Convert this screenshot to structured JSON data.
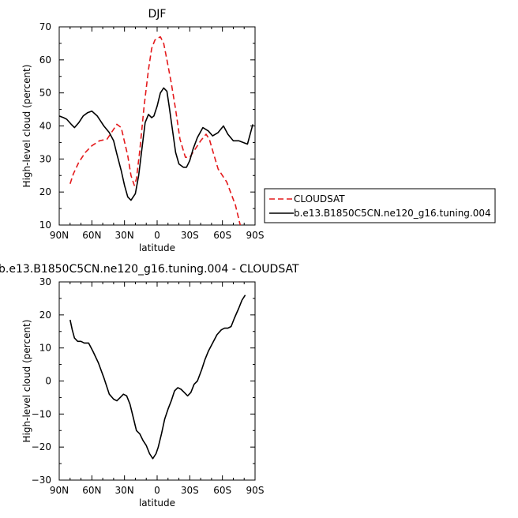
{
  "chart_data": [
    {
      "type": "line",
      "title": "DJF",
      "xlabel": "latitude",
      "ylabel": "High-level cloud (percent)",
      "xlim": [
        90,
        -90
      ],
      "ylim": [
        10,
        70
      ],
      "xticks": [
        90,
        60,
        30,
        0,
        -30,
        -60,
        -90
      ],
      "xtick_labels": [
        "90N",
        "60N",
        "30N",
        "0",
        "30S",
        "60S",
        "90S"
      ],
      "yticks": [
        10,
        20,
        30,
        40,
        50,
        60,
        70
      ],
      "ytick_labels": [
        "10",
        "20",
        "30",
        "40",
        "50",
        "60",
        "70"
      ],
      "legend": "right",
      "series": [
        {
          "name": "CLOUDSAT",
          "color": "#e41a1c",
          "dash": "dashed",
          "x": [
            80,
            77,
            72,
            66,
            60,
            53,
            46,
            41,
            37,
            33,
            27,
            24,
            21,
            19,
            16,
            12,
            8,
            5,
            2,
            -3,
            -6,
            -9,
            -13,
            -17,
            -21,
            -26,
            -30,
            -35,
            -40,
            -45,
            -48,
            -52,
            -56,
            -60,
            -64,
            -68,
            -72,
            -76,
            -80
          ],
          "y": [
            22.5,
            25.5,
            29,
            32,
            34,
            35.5,
            36,
            38.5,
            40.5,
            39.5,
            31,
            25,
            22,
            24,
            32.5,
            46,
            57,
            63.5,
            66,
            67,
            65,
            60,
            53,
            45,
            36,
            30.5,
            30.5,
            33,
            35.5,
            37.5,
            36,
            31.5,
            27,
            25,
            23,
            19.5,
            16,
            10.5,
            6
          ]
        },
        {
          "name": "b.e13.B1850C5CN.ne120_g16.tuning.004",
          "color": "#000000",
          "dash": "solid",
          "x": [
            90,
            86,
            83,
            79,
            76,
            72,
            68,
            64,
            60,
            55,
            49,
            44,
            40,
            37,
            33,
            30,
            27,
            24,
            20,
            17,
            14,
            11,
            8,
            5,
            3,
            0,
            -3,
            -6,
            -9,
            -11,
            -14,
            -17,
            -20,
            -24,
            -27,
            -30,
            -33,
            -37,
            -42,
            -47,
            -51,
            -56,
            -61,
            -65,
            -70,
            -75,
            -79,
            -83,
            -88
          ],
          "y": [
            43,
            42.5,
            42,
            40.5,
            39.5,
            41,
            43,
            44,
            44.5,
            43,
            40,
            38,
            35.5,
            31.5,
            26.5,
            22,
            18.5,
            17.5,
            19.5,
            25,
            33,
            41,
            43.5,
            42.5,
            43,
            46,
            50,
            51.5,
            50.5,
            46,
            39,
            32,
            28.5,
            27.5,
            27.5,
            29.5,
            33,
            36.5,
            39.5,
            38.5,
            37,
            38,
            40,
            37.5,
            35.5,
            35.5,
            35,
            34.5,
            40.5
          ]
        }
      ]
    },
    {
      "type": "line",
      "title": "b.e13.B1850C5CN.ne120_g16.tuning.004 - CLOUDSAT",
      "xlabel": "latitude",
      "ylabel": "High-level cloud (percent)",
      "xlim": [
        90,
        -90
      ],
      "ylim": [
        -30,
        30
      ],
      "xticks": [
        90,
        60,
        30,
        0,
        -30,
        -60,
        -90
      ],
      "xtick_labels": [
        "90N",
        "60N",
        "30N",
        "0",
        "30S",
        "60S",
        "90S"
      ],
      "yticks": [
        -30,
        -20,
        -10,
        0,
        10,
        20,
        30
      ],
      "ytick_labels": [
        "−30",
        "−20",
        "−10",
        "0",
        "10",
        "20",
        "30"
      ],
      "series": [
        {
          "color": "#000000",
          "dash": "solid",
          "x": [
            80,
            78,
            76,
            73,
            70,
            67,
            63,
            59,
            54,
            49,
            44,
            40,
            37,
            34,
            31,
            28,
            25,
            22,
            19,
            16,
            13,
            10,
            7,
            4,
            1,
            -1,
            -4,
            -7,
            -10,
            -13,
            -16,
            -19,
            -22,
            -25,
            -28,
            -31,
            -34,
            -37,
            -41,
            -44,
            -47,
            -51,
            -55,
            -59,
            -62,
            -65,
            -68,
            -71,
            -75,
            -78,
            -81
          ],
          "y": [
            18.5,
            15.5,
            13,
            12,
            12,
            11.5,
            11.5,
            9,
            5.5,
            1,
            -4,
            -5.5,
            -6,
            -5,
            -4,
            -4.5,
            -7,
            -11,
            -15,
            -16,
            -18,
            -19.5,
            -22,
            -23.5,
            -22,
            -20,
            -16,
            -11.5,
            -8.5,
            -6,
            -3,
            -2,
            -2.5,
            -3.5,
            -4.5,
            -3.5,
            -1,
            0,
            3.5,
            6.5,
            9,
            11.5,
            14,
            15.5,
            16,
            16,
            16.5,
            19,
            22,
            24.5,
            26
          ]
        }
      ]
    }
  ]
}
